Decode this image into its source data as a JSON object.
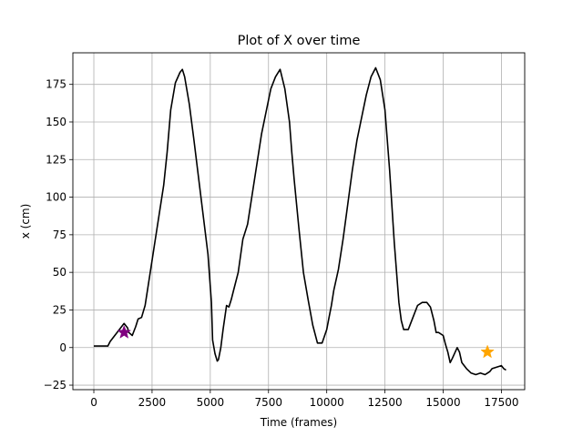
{
  "chart_data": {
    "type": "line",
    "title": "Plot of X over time",
    "xlabel": "Time (frames)",
    "ylabel": "x (cm)",
    "xlim": [
      -900,
      18500
    ],
    "ylim": [
      -28,
      196
    ],
    "grid": true,
    "xticks": [
      0,
      2500,
      5000,
      7500,
      10000,
      12500,
      15000,
      17500
    ],
    "xtick_labels": [
      "0",
      "2500",
      "5000",
      "7500",
      "10000",
      "12500",
      "15000",
      "17500"
    ],
    "yticks": [
      -25,
      0,
      25,
      50,
      75,
      100,
      125,
      150,
      175
    ],
    "ytick_labels": [
      "−25",
      "0",
      "25",
      "50",
      "75",
      "100",
      "125",
      "150",
      "175"
    ],
    "series": [
      {
        "color": "#000000",
        "x": [
          0,
          300,
          600,
          700,
          900,
          1100,
          1300,
          1450,
          1500,
          1650,
          1800,
          1900,
          2050,
          2200,
          2400,
          2600,
          2800,
          3000,
          3150,
          3300,
          3500,
          3700,
          3800,
          3900,
          4100,
          4300,
          4600,
          4900,
          5050,
          5100,
          5200,
          5300,
          5350,
          5450,
          5550,
          5700,
          5800,
          5900,
          6000,
          6200,
          6400,
          6600,
          6800,
          7000,
          7200,
          7400,
          7600,
          7800,
          8000,
          8200,
          8400,
          8500,
          8600,
          8800,
          9000,
          9200,
          9400,
          9600,
          9800,
          10000,
          10100,
          10200,
          10300,
          10500,
          10700,
          10900,
          11100,
          11300,
          11500,
          11700,
          11900,
          12100,
          12300,
          12500,
          12700,
          12900,
          13100,
          13200,
          13300,
          13500,
          13700,
          13900,
          14100,
          14300,
          14450,
          14600,
          14700,
          14800,
          15000,
          15100,
          15200,
          15300,
          15400,
          15600,
          15700,
          15800,
          16000,
          16200,
          16400,
          16600,
          16800,
          16900,
          17000,
          17100,
          17300,
          17500,
          17600,
          17700
        ],
        "y": [
          1,
          1,
          1,
          4,
          8,
          12,
          16,
          13,
          10,
          8,
          14,
          19,
          20,
          28,
          48,
          68,
          88,
          108,
          130,
          158,
          176,
          183,
          185,
          180,
          162,
          138,
          100,
          62,
          30,
          5,
          -4,
          -9,
          -8,
          0,
          12,
          28,
          27,
          32,
          38,
          50,
          72,
          82,
          102,
          122,
          142,
          157,
          172,
          180,
          185,
          172,
          150,
          130,
          112,
          80,
          50,
          32,
          15,
          3,
          3,
          12,
          20,
          28,
          38,
          52,
          72,
          95,
          118,
          138,
          153,
          168,
          180,
          186,
          178,
          158,
          118,
          70,
          30,
          18,
          12,
          12,
          20,
          28,
          30,
          30,
          27,
          18,
          10,
          10,
          8,
          2,
          -3,
          -10,
          -7,
          0,
          -3,
          -10,
          -14,
          -17,
          -18,
          -17,
          -18,
          -17,
          -16,
          -14,
          -13,
          -12,
          -14,
          -15
        ]
      }
    ],
    "markers": [
      {
        "x": 1300,
        "y": 10,
        "shape": "star",
        "color": "#800080"
      },
      {
        "x": 16900,
        "y": -3,
        "shape": "star",
        "color": "#ffa500"
      }
    ]
  }
}
